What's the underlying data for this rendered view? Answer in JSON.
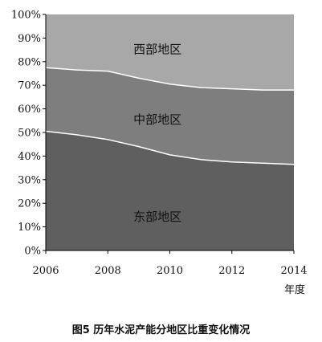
{
  "chart_data": {
    "type": "area",
    "stacked": true,
    "title": "图5 历年水泥产能分地区比重变化情况",
    "xlabel": "年度",
    "ylabel": "",
    "x": [
      2006,
      2007,
      2008,
      2009,
      2010,
      2011,
      2012,
      2013,
      2014
    ],
    "xticks": [
      "2006",
      "2008",
      "2010",
      "2012",
      "2014"
    ],
    "yticks": [
      "0%",
      "10%",
      "20%",
      "30%",
      "40%",
      "50%",
      "60%",
      "70%",
      "80%",
      "90%",
      "100%"
    ],
    "xlim": [
      2006,
      2014
    ],
    "ylim": [
      0,
      100
    ],
    "grid": false,
    "legend": "none",
    "series": [
      {
        "name": "东部地区",
        "color": "#5f5f5f",
        "values": [
          50.5,
          49,
          47,
          44,
          40.5,
          38.5,
          37.5,
          37,
          36.5
        ]
      },
      {
        "name": "中部地区",
        "color": "#7e7e7e",
        "values": [
          27,
          27.5,
          29,
          29,
          30,
          30.5,
          31,
          31,
          31.5
        ]
      },
      {
        "name": "西部地区",
        "color": "#a8a8a8",
        "values": [
          22.5,
          23.5,
          24,
          27,
          29.5,
          31,
          31.5,
          32,
          32
        ]
      }
    ],
    "boundary_color": "#ffffff"
  }
}
